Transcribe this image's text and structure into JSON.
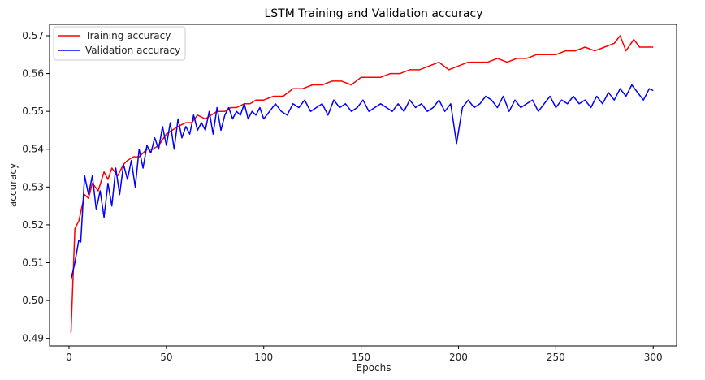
{
  "chart_data": {
    "type": "line",
    "title": "LSTM Training and Validation accuracy",
    "xlabel": "Epochs",
    "ylabel": "accuracy",
    "xlim": [
      -10,
      312
    ],
    "ylim": [
      0.488,
      0.573
    ],
    "xticks": [
      0,
      50,
      100,
      150,
      200,
      250,
      300
    ],
    "yticks": [
      0.49,
      0.5,
      0.51,
      0.52,
      0.53,
      0.54,
      0.55,
      0.56,
      0.57
    ],
    "ytick_labels": [
      "0.49",
      "0.50",
      "0.51",
      "0.52",
      "0.53",
      "0.54",
      "0.55",
      "0.56",
      "0.57"
    ],
    "grid": false,
    "legend_position": "top-left",
    "series": [
      {
        "name": "Training accuracy",
        "color": "#ff0000",
        "x": [
          1,
          3,
          5,
          8,
          10,
          12,
          15,
          18,
          20,
          22,
          25,
          28,
          30,
          33,
          36,
          40,
          43,
          46,
          50,
          53,
          56,
          60,
          63,
          66,
          70,
          73,
          76,
          80,
          83,
          86,
          90,
          93,
          96,
          100,
          105,
          110,
          115,
          120,
          125,
          130,
          135,
          140,
          145,
          150,
          155,
          160,
          165,
          170,
          175,
          180,
          185,
          190,
          195,
          200,
          205,
          210,
          215,
          220,
          225,
          230,
          235,
          240,
          245,
          250,
          255,
          260,
          265,
          270,
          275,
          280,
          283,
          286,
          290,
          293,
          296,
          300
        ],
        "values": [
          0.4915,
          0.519,
          0.521,
          0.528,
          0.527,
          0.531,
          0.529,
          0.534,
          0.532,
          0.535,
          0.533,
          0.536,
          0.537,
          0.538,
          0.538,
          0.54,
          0.54,
          0.541,
          0.544,
          0.545,
          0.546,
          0.547,
          0.547,
          0.549,
          0.548,
          0.549,
          0.55,
          0.55,
          0.551,
          0.551,
          0.552,
          0.552,
          0.553,
          0.553,
          0.554,
          0.554,
          0.556,
          0.556,
          0.557,
          0.557,
          0.558,
          0.558,
          0.557,
          0.559,
          0.559,
          0.559,
          0.56,
          0.56,
          0.561,
          0.561,
          0.562,
          0.563,
          0.561,
          0.562,
          0.563,
          0.563,
          0.563,
          0.564,
          0.563,
          0.564,
          0.564,
          0.565,
          0.565,
          0.565,
          0.566,
          0.566,
          0.567,
          0.566,
          0.567,
          0.568,
          0.57,
          0.566,
          0.569,
          0.567,
          0.567,
          0.567
        ]
      },
      {
        "name": "Validation accuracy",
        "color": "#0000ff",
        "x": [
          1,
          3,
          5,
          6,
          8,
          10,
          12,
          14,
          16,
          18,
          20,
          22,
          24,
          26,
          28,
          30,
          32,
          34,
          36,
          38,
          40,
          42,
          44,
          46,
          48,
          50,
          52,
          54,
          56,
          58,
          60,
          62,
          64,
          66,
          68,
          70,
          72,
          74,
          76,
          78,
          80,
          82,
          84,
          86,
          88,
          90,
          92,
          94,
          96,
          98,
          100,
          103,
          106,
          109,
          112,
          115,
          118,
          121,
          124,
          127,
          130,
          133,
          136,
          139,
          142,
          145,
          148,
          151,
          154,
          157,
          160,
          163,
          166,
          169,
          172,
          175,
          178,
          181,
          184,
          187,
          190,
          193,
          196,
          199,
          202,
          205,
          208,
          211,
          214,
          217,
          220,
          223,
          226,
          229,
          232,
          235,
          238,
          241,
          244,
          247,
          250,
          253,
          256,
          259,
          262,
          265,
          268,
          271,
          274,
          277,
          280,
          283,
          286,
          289,
          292,
          295,
          298,
          300
        ],
        "values": [
          0.5055,
          0.51,
          0.516,
          0.5155,
          0.533,
          0.528,
          0.533,
          0.524,
          0.529,
          0.522,
          0.531,
          0.525,
          0.535,
          0.528,
          0.536,
          0.532,
          0.537,
          0.53,
          0.54,
          0.535,
          0.541,
          0.539,
          0.543,
          0.54,
          0.546,
          0.541,
          0.547,
          0.54,
          0.548,
          0.543,
          0.546,
          0.544,
          0.549,
          0.545,
          0.547,
          0.545,
          0.55,
          0.544,
          0.551,
          0.545,
          0.549,
          0.551,
          0.548,
          0.55,
          0.549,
          0.552,
          0.548,
          0.55,
          0.549,
          0.551,
          0.548,
          0.55,
          0.552,
          0.55,
          0.549,
          0.552,
          0.551,
          0.553,
          0.55,
          0.551,
          0.552,
          0.549,
          0.553,
          0.551,
          0.552,
          0.55,
          0.551,
          0.553,
          0.55,
          0.551,
          0.552,
          0.551,
          0.55,
          0.552,
          0.55,
          0.553,
          0.551,
          0.552,
          0.55,
          0.551,
          0.553,
          0.55,
          0.552,
          0.5415,
          0.551,
          0.553,
          0.551,
          0.552,
          0.554,
          0.553,
          0.551,
          0.554,
          0.55,
          0.553,
          0.551,
          0.552,
          0.553,
          0.55,
          0.552,
          0.554,
          0.551,
          0.553,
          0.552,
          0.554,
          0.552,
          0.553,
          0.551,
          0.554,
          0.552,
          0.555,
          0.553,
          0.556,
          0.554,
          0.557,
          0.555,
          0.553,
          0.556,
          0.5555
        ]
      }
    ]
  }
}
